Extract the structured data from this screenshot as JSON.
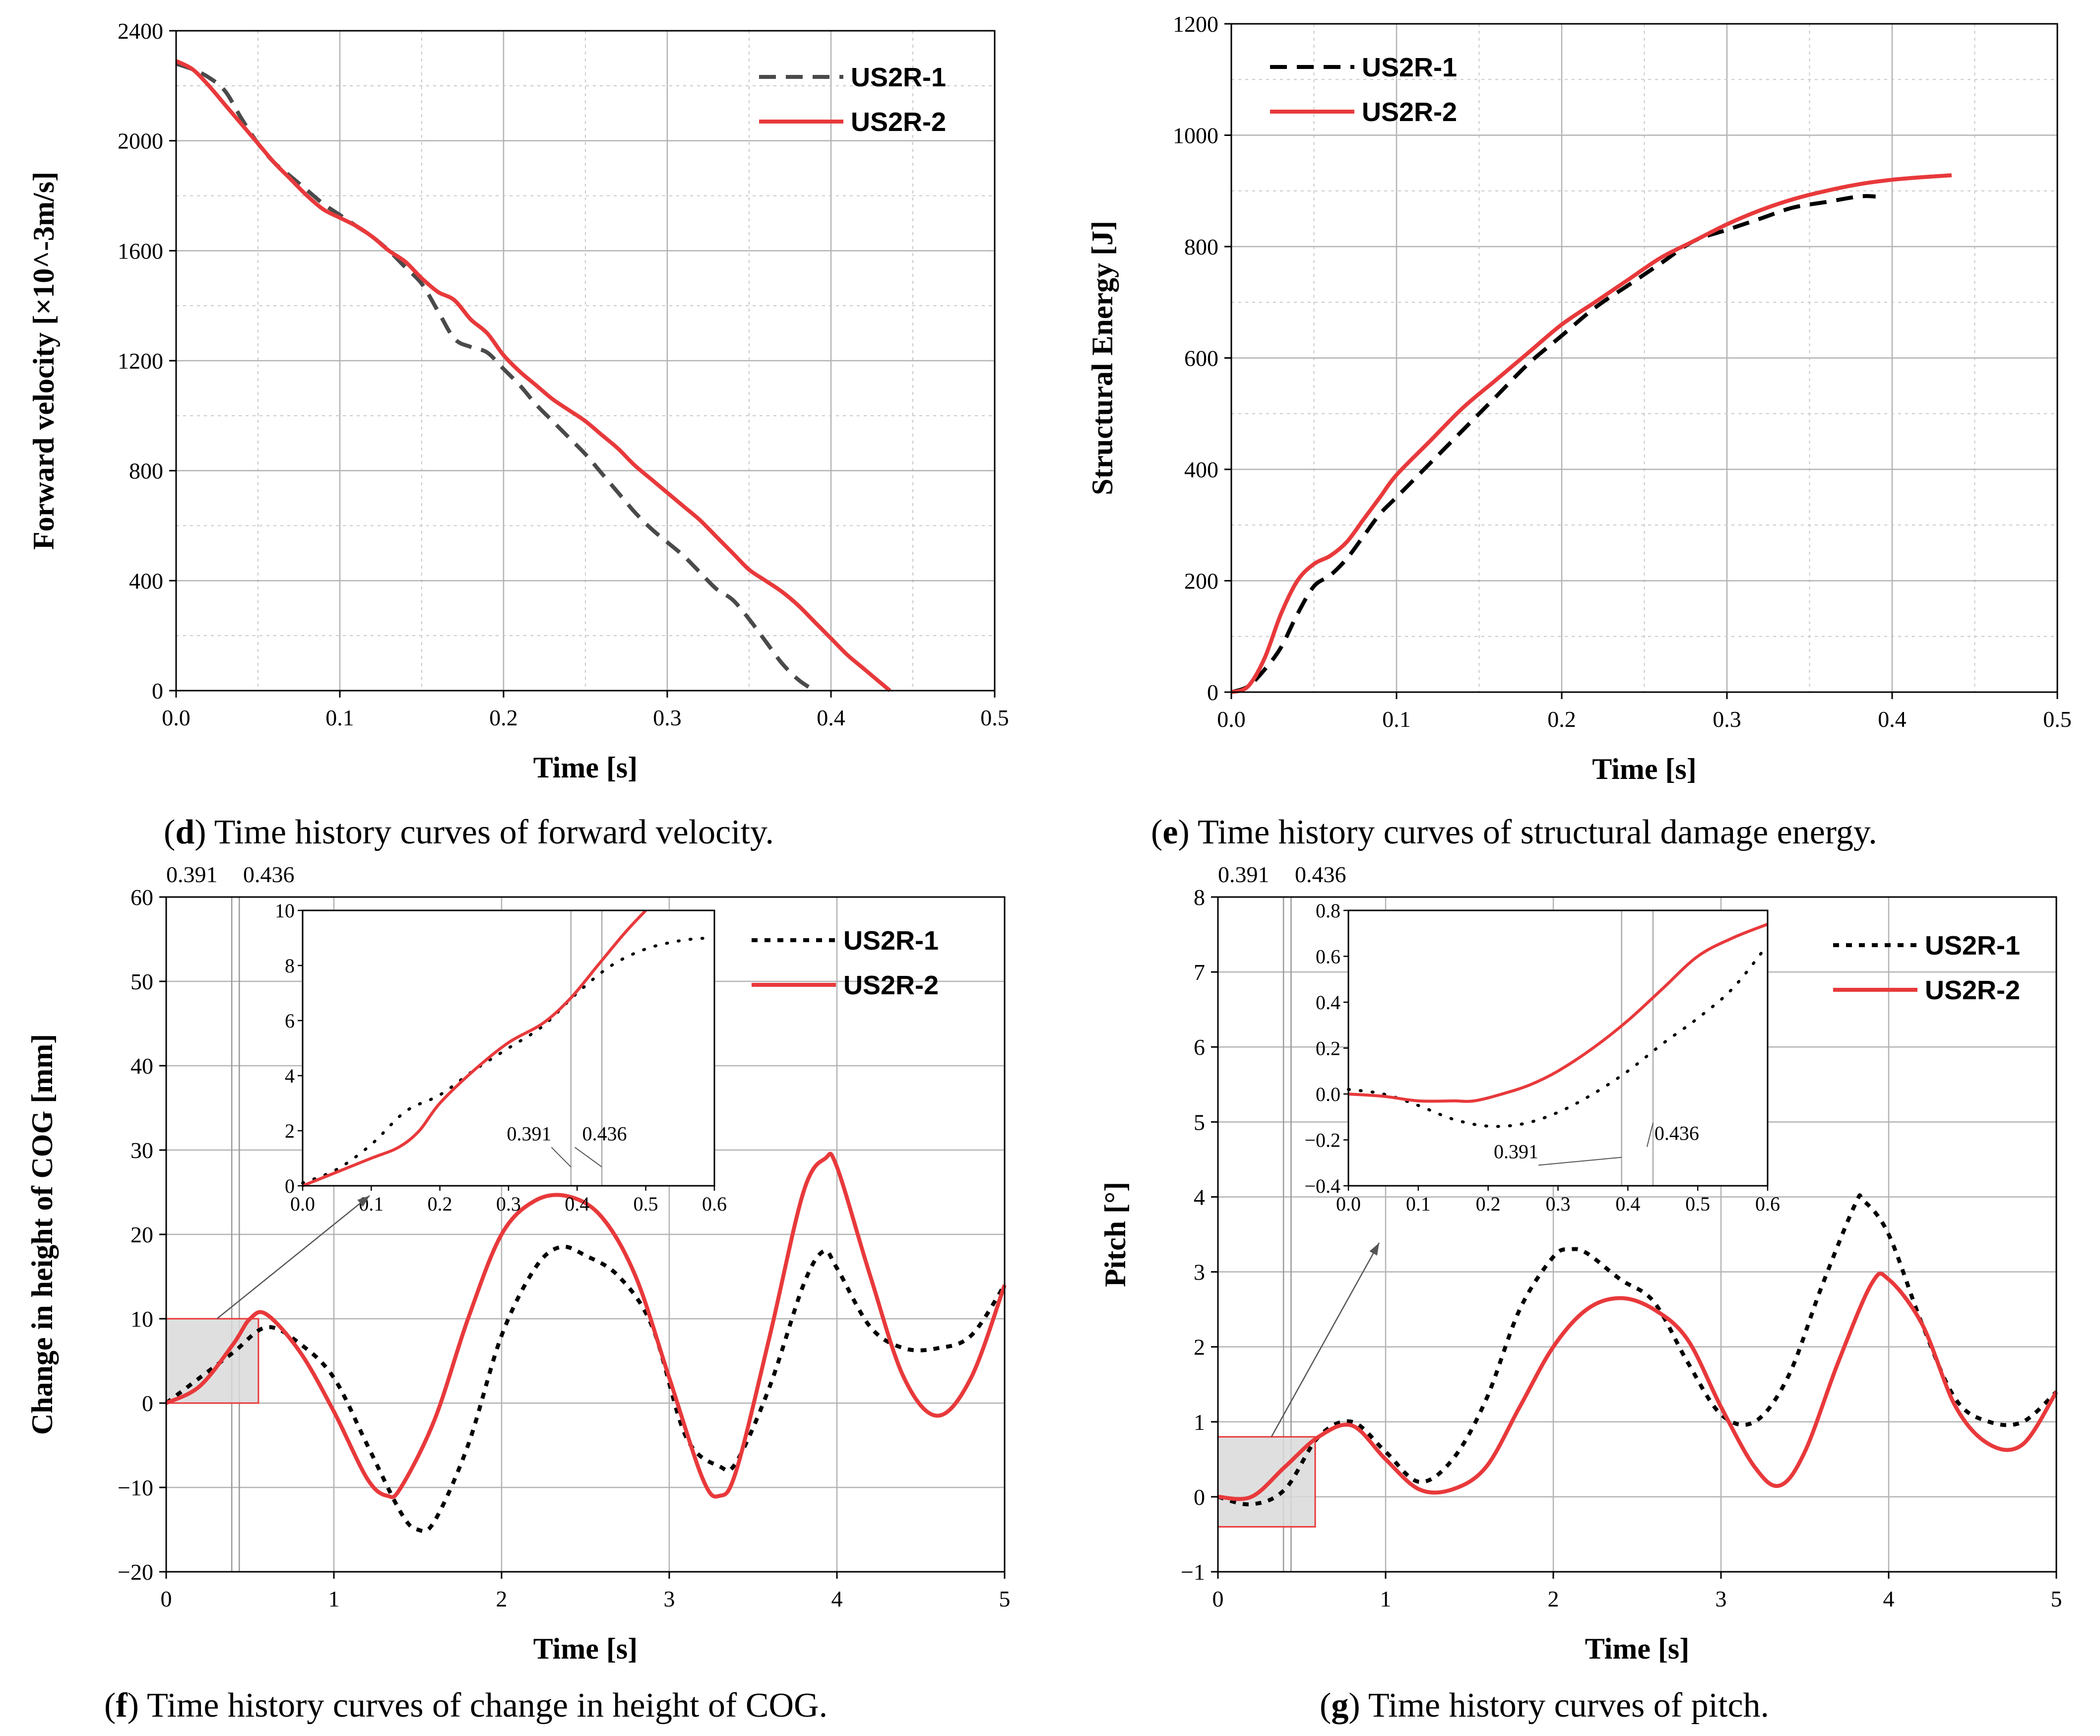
{
  "captions": {
    "d": {
      "letter": "d",
      "text": " Time history curves of forward velocity.",
      "open": "(",
      "close": ")"
    },
    "e": {
      "letter": "e",
      "text": " Time history curves of structural damage energy.",
      "open": "(",
      "close": ")"
    },
    "f": {
      "letter": "f",
      "text": " Time history curves of change in height of COG.",
      "open": "(",
      "close": ")"
    },
    "g": {
      "letter": "g",
      "text": " Time history curves of pitch.",
      "open": "(",
      "close": ")"
    }
  },
  "colors": {
    "us2r1_d": "#4a4a4a",
    "us2r1": "#000000",
    "us2r2": "#e8393b",
    "inset_box_fill": "#d9d9d9",
    "inset_box_stroke": "#e8393b"
  },
  "chart_data": [
    {
      "id": "d",
      "type": "line",
      "title": "",
      "xlabel": "Time [s]",
      "ylabel": "Forward velocity [×10^-3m/s]",
      "xlim": [
        0,
        0.5
      ],
      "ylim": [
        0,
        2400
      ],
      "xticks": [
        0.0,
        0.1,
        0.2,
        0.3,
        0.4,
        0.5
      ],
      "xtick_labels": [
        "0.0",
        "0.1",
        "0.2",
        "0.3",
        "0.4",
        "0.5"
      ],
      "yticks": [
        0,
        400,
        800,
        1200,
        1600,
        2000,
        2400
      ],
      "ytick_labels": [
        "0",
        "400",
        "800",
        "1200",
        "1600",
        "2000",
        "2400"
      ],
      "legend": "top-right",
      "series": [
        {
          "name": "US2R-1",
          "style": "dashed",
          "x": [
            0,
            0.01,
            0.02,
            0.03,
            0.04,
            0.05,
            0.06,
            0.07,
            0.08,
            0.09,
            0.1,
            0.11,
            0.12,
            0.13,
            0.14,
            0.15,
            0.16,
            0.17,
            0.18,
            0.19,
            0.2,
            0.21,
            0.22,
            0.23,
            0.24,
            0.25,
            0.26,
            0.27,
            0.28,
            0.29,
            0.3,
            0.31,
            0.32,
            0.33,
            0.34,
            0.35,
            0.36,
            0.37,
            0.38,
            0.39
          ],
          "y": [
            2280,
            2260,
            2230,
            2180,
            2080,
            1990,
            1920,
            1870,
            1820,
            1770,
            1730,
            1690,
            1650,
            1600,
            1540,
            1480,
            1380,
            1280,
            1250,
            1230,
            1170,
            1110,
            1040,
            980,
            920,
            860,
            790,
            720,
            650,
            590,
            540,
            490,
            430,
            370,
            330,
            260,
            180,
            100,
            40,
            0
          ]
        },
        {
          "name": "US2R-2",
          "style": "solid",
          "x": [
            0,
            0.01,
            0.02,
            0.03,
            0.04,
            0.05,
            0.06,
            0.07,
            0.08,
            0.09,
            0.1,
            0.11,
            0.12,
            0.13,
            0.14,
            0.15,
            0.16,
            0.17,
            0.18,
            0.19,
            0.2,
            0.21,
            0.22,
            0.23,
            0.24,
            0.25,
            0.26,
            0.27,
            0.28,
            0.29,
            0.3,
            0.31,
            0.32,
            0.33,
            0.34,
            0.35,
            0.36,
            0.37,
            0.38,
            0.39,
            0.4,
            0.41,
            0.42,
            0.43,
            0.436
          ],
          "y": [
            2290,
            2260,
            2200,
            2130,
            2060,
            1990,
            1920,
            1860,
            1800,
            1750,
            1720,
            1690,
            1650,
            1600,
            1560,
            1500,
            1450,
            1420,
            1350,
            1300,
            1220,
            1160,
            1110,
            1060,
            1020,
            980,
            930,
            880,
            820,
            770,
            720,
            670,
            620,
            560,
            500,
            440,
            400,
            360,
            310,
            250,
            190,
            130,
            80,
            30,
            0
          ]
        }
      ]
    },
    {
      "id": "e",
      "type": "line",
      "title": "",
      "xlabel": "Time [s]",
      "ylabel": "Structural Energy [J]",
      "xlim": [
        0,
        0.5
      ],
      "ylim": [
        0,
        1200
      ],
      "xticks": [
        0.0,
        0.1,
        0.2,
        0.3,
        0.4,
        0.5
      ],
      "xtick_labels": [
        "0.0",
        "0.1",
        "0.2",
        "0.3",
        "0.4",
        "0.5"
      ],
      "yticks": [
        0,
        200,
        400,
        600,
        800,
        1000,
        1200
      ],
      "ytick_labels": [
        "0",
        "200",
        "400",
        "600",
        "800",
        "1000",
        "1200"
      ],
      "legend": "top-left",
      "series": [
        {
          "name": "US2R-1",
          "style": "dashed",
          "x": [
            0,
            0.01,
            0.02,
            0.03,
            0.04,
            0.05,
            0.06,
            0.07,
            0.08,
            0.09,
            0.1,
            0.12,
            0.14,
            0.16,
            0.18,
            0.2,
            0.22,
            0.24,
            0.26,
            0.28,
            0.3,
            0.32,
            0.34,
            0.36,
            0.38,
            0.39
          ],
          "y": [
            0,
            10,
            40,
            80,
            140,
            190,
            210,
            240,
            280,
            320,
            350,
            410,
            470,
            530,
            590,
            640,
            690,
            730,
            770,
            810,
            830,
            850,
            870,
            880,
            890,
            890
          ]
        },
        {
          "name": "US2R-2",
          "style": "solid",
          "x": [
            0,
            0.01,
            0.02,
            0.03,
            0.04,
            0.05,
            0.06,
            0.07,
            0.08,
            0.09,
            0.1,
            0.12,
            0.14,
            0.16,
            0.18,
            0.2,
            0.22,
            0.24,
            0.26,
            0.28,
            0.3,
            0.32,
            0.34,
            0.36,
            0.38,
            0.4,
            0.42,
            0.436
          ],
          "y": [
            0,
            10,
            60,
            140,
            200,
            230,
            245,
            270,
            310,
            350,
            390,
            450,
            510,
            560,
            610,
            660,
            700,
            740,
            780,
            810,
            840,
            865,
            885,
            900,
            912,
            920,
            925,
            928
          ]
        }
      ]
    },
    {
      "id": "f",
      "type": "line",
      "title": "",
      "xlabel": "Time [s]",
      "ylabel": "Change in height of COG [mm]",
      "xlim": [
        0,
        5
      ],
      "ylim": [
        -20,
        60
      ],
      "xticks": [
        0,
        1,
        2,
        3,
        4,
        5
      ],
      "xtick_labels": [
        "0",
        "1",
        "2",
        "3",
        "4",
        "5"
      ],
      "yticks": [
        -20,
        -10,
        0,
        10,
        20,
        30,
        40,
        50,
        60
      ],
      "ytick_labels": [
        "−20",
        "−10",
        "0",
        "10",
        "20",
        "30",
        "40",
        "50",
        "60"
      ],
      "legend": "top-right",
      "top_annotations": [
        "0.391",
        "0.436"
      ],
      "vlines": [
        0.391,
        0.436
      ],
      "series": [
        {
          "name": "US2R-1",
          "style": "dotted",
          "x": [
            0,
            0.2,
            0.4,
            0.6,
            0.8,
            1.0,
            1.2,
            1.4,
            1.5,
            1.6,
            1.8,
            2.0,
            2.2,
            2.35,
            2.5,
            2.7,
            2.9,
            3.1,
            3.3,
            3.4,
            3.6,
            3.8,
            3.92,
            4.0,
            4.2,
            4.4,
            4.6,
            4.8,
            5.0
          ],
          "y": [
            0,
            3,
            6,
            9,
            7,
            3,
            -5,
            -13,
            -15,
            -14,
            -5,
            8,
            16,
            18.5,
            17.5,
            15,
            9,
            -4,
            -7.5,
            -7,
            2,
            14,
            18,
            16,
            9,
            6.5,
            6.5,
            8,
            14
          ]
        },
        {
          "name": "US2R-2",
          "style": "solid",
          "x": [
            0,
            0.2,
            0.4,
            0.5,
            0.6,
            0.8,
            1.0,
            1.2,
            1.32,
            1.4,
            1.6,
            1.8,
            2.0,
            2.2,
            2.4,
            2.6,
            2.8,
            3.0,
            3.2,
            3.3,
            3.4,
            3.6,
            3.8,
            3.93,
            4.0,
            4.2,
            4.4,
            4.6,
            4.8,
            5.0
          ],
          "y": [
            0,
            2,
            7,
            10,
            10.5,
            6,
            -1,
            -9,
            -11,
            -10,
            -2,
            10,
            20,
            24,
            24.5,
            22,
            15,
            3,
            -9,
            -11,
            -8,
            8,
            25,
            29,
            28,
            15,
            3,
            -1.5,
            3,
            14
          ]
        }
      ],
      "inset": {
        "xlim": [
          0,
          0.6
        ],
        "ylim": [
          0,
          10
        ],
        "xticks": [
          0.0,
          0.1,
          0.2,
          0.3,
          0.4,
          0.5,
          0.6
        ],
        "xtick_labels": [
          "0.0",
          "0.1",
          "0.2",
          "0.3",
          "0.4",
          "0.5",
          "0.6"
        ],
        "yticks": [
          0,
          2,
          4,
          6,
          8,
          10
        ],
        "ytick_labels": [
          "0",
          "2",
          "4",
          "6",
          "8",
          "10"
        ],
        "annotations": [
          "0.391",
          "0.436"
        ],
        "series": [
          {
            "name": "US2R-1",
            "x": [
              0,
              0.05,
              0.1,
              0.15,
              0.2,
              0.25,
              0.3,
              0.35,
              0.4,
              0.45,
              0.5,
              0.55,
              0.59
            ],
            "y": [
              0.1,
              0.6,
              1.5,
              2.7,
              3.3,
              4.2,
              5.0,
              5.8,
              7.0,
              8.0,
              8.6,
              8.9,
              9.0
            ]
          },
          {
            "name": "US2R-2",
            "x": [
              0,
              0.05,
              0.1,
              0.14,
              0.17,
              0.2,
              0.25,
              0.3,
              0.35,
              0.39,
              0.43,
              0.47,
              0.5
            ],
            "y": [
              0,
              0.5,
              1.0,
              1.4,
              2.0,
              3.0,
              4.2,
              5.2,
              5.9,
              6.8,
              8.0,
              9.2,
              10.0
            ]
          }
        ]
      }
    },
    {
      "id": "g",
      "type": "line",
      "title": "",
      "xlabel": "Time [s]",
      "ylabel": "Pitch [°]",
      "xlim": [
        0,
        5
      ],
      "ylim": [
        -1,
        8
      ],
      "xticks": [
        0,
        1,
        2,
        3,
        4,
        5
      ],
      "xtick_labels": [
        "0",
        "1",
        "2",
        "3",
        "4",
        "5"
      ],
      "yticks": [
        -1,
        0,
        1,
        2,
        3,
        4,
        5,
        6,
        7,
        8
      ],
      "ytick_labels": [
        "−1",
        "0",
        "1",
        "2",
        "3",
        "4",
        "5",
        "6",
        "7",
        "8"
      ],
      "legend": "top-right",
      "top_annotations": [
        "0.391",
        "0.436"
      ],
      "vlines": [
        0.391,
        0.436
      ],
      "series": [
        {
          "name": "US2R-1",
          "style": "dotted",
          "x": [
            0,
            0.2,
            0.4,
            0.6,
            0.8,
            1.0,
            1.2,
            1.4,
            1.6,
            1.8,
            2.0,
            2.1,
            2.2,
            2.4,
            2.6,
            2.8,
            3.0,
            3.2,
            3.4,
            3.6,
            3.8,
            3.85,
            4.0,
            4.2,
            4.4,
            4.6,
            4.8,
            5.0
          ],
          "y": [
            0,
            -0.1,
            0.1,
            0.8,
            1.0,
            0.6,
            0.2,
            0.5,
            1.3,
            2.5,
            3.2,
            3.3,
            3.25,
            2.9,
            2.6,
            1.8,
            1.1,
            1.0,
            1.6,
            2.8,
            3.9,
            3.95,
            3.5,
            2.3,
            1.3,
            1.0,
            1.0,
            1.4
          ]
        },
        {
          "name": "US2R-2",
          "style": "solid",
          "x": [
            0,
            0.2,
            0.4,
            0.6,
            0.8,
            1.0,
            1.2,
            1.4,
            1.6,
            1.8,
            2.0,
            2.2,
            2.4,
            2.6,
            2.8,
            3.0,
            3.2,
            3.35,
            3.5,
            3.7,
            3.9,
            4.0,
            4.2,
            4.4,
            4.6,
            4.8,
            5.0
          ],
          "y": [
            0,
            0,
            0.4,
            0.8,
            0.95,
            0.5,
            0.1,
            0.1,
            0.4,
            1.2,
            2.0,
            2.5,
            2.65,
            2.5,
            2.1,
            1.2,
            0.4,
            0.15,
            0.6,
            1.8,
            2.85,
            2.9,
            2.3,
            1.2,
            0.7,
            0.7,
            1.4
          ]
        }
      ],
      "inset": {
        "xlim": [
          0,
          0.6
        ],
        "ylim": [
          -0.4,
          0.8
        ],
        "xticks": [
          0.0,
          0.1,
          0.2,
          0.3,
          0.4,
          0.5,
          0.6
        ],
        "xtick_labels": [
          "0.0",
          "0.1",
          "0.2",
          "0.3",
          "0.4",
          "0.5",
          "0.6"
        ],
        "yticks": [
          -0.4,
          -0.2,
          0.0,
          0.2,
          0.4,
          0.6,
          0.8
        ],
        "ytick_labels": [
          "−0.4",
          "−0.2",
          "0.0",
          "0.2",
          "0.4",
          "0.6",
          "0.8"
        ],
        "annotations": [
          "0.391",
          "0.436"
        ],
        "series": [
          {
            "name": "US2R-1",
            "x": [
              0,
              0.05,
              0.1,
              0.15,
              0.2,
              0.25,
              0.3,
              0.35,
              0.4,
              0.45,
              0.5,
              0.55,
              0.6
            ],
            "y": [
              0.02,
              0.0,
              -0.05,
              -0.11,
              -0.14,
              -0.13,
              -0.08,
              0.0,
              0.1,
              0.22,
              0.33,
              0.46,
              0.65
            ]
          },
          {
            "name": "US2R-2",
            "x": [
              0,
              0.05,
              0.1,
              0.15,
              0.18,
              0.22,
              0.26,
              0.3,
              0.35,
              0.4,
              0.45,
              0.5,
              0.55,
              0.6
            ],
            "y": [
              0,
              -0.01,
              -0.03,
              -0.03,
              -0.03,
              0.0,
              0.04,
              0.1,
              0.2,
              0.32,
              0.46,
              0.6,
              0.68,
              0.74
            ]
          }
        ]
      }
    }
  ]
}
